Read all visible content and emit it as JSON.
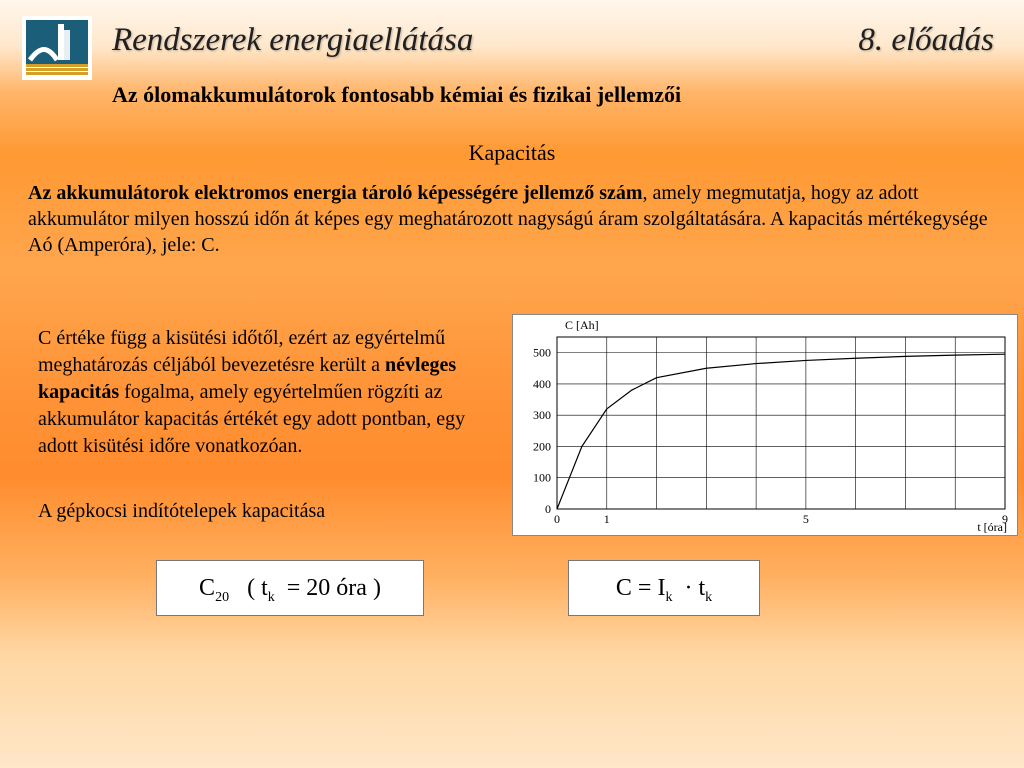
{
  "header": {
    "title": "Rendszerek energiaellátása",
    "lecture": "8. előadás"
  },
  "subtitle": "Az ólomakkumulátorok fontosabb kémiai és fizikai jellemzői",
  "section_title": "Kapacitás",
  "paragraph1": {
    "bold_part": "Az akkumulátorok elektromos energia tároló képességére jellemző szám",
    "rest": ", amely megmutatja, hogy az adott akkumulátor milyen hosszú időn át képes egy meghatározott nagyságú áram szolgáltatására. A kapacitás mértékegysége Aó (Amperóra), jele: C."
  },
  "paragraph2": {
    "pre": "C értéke függ a kisütési időtől, ezért az egyértelmű meghatározás céljából bevezetésre került a ",
    "bold": "névleges kapacitás",
    "post": " fogalma, amely egyértelműen rögzíti az akkumulátor kapacitás értékét egy adott pontban, egy adott kisütési időre vonatkozóan."
  },
  "paragraph3": "A gépkocsi indítótelepek kapacitása",
  "formula1": {
    "C": "C",
    "C_sub": "20",
    "t": "t",
    "t_sub": "k",
    "value": "20 óra"
  },
  "formula2": {
    "C": "C",
    "I": "I",
    "I_sub": "k",
    "t": "t",
    "t_sub": "k"
  },
  "chart": {
    "type": "line",
    "y_axis_label": "C [Ah]",
    "x_axis_label": "t [óra]",
    "y_ticks": [
      0,
      100,
      200,
      300,
      400,
      500
    ],
    "x_ticks": [
      0,
      1,
      5,
      9
    ],
    "ylim": [
      0,
      550
    ],
    "xlim": [
      0,
      9
    ],
    "curve": [
      {
        "x": 0,
        "y": 0
      },
      {
        "x": 0.5,
        "y": 200
      },
      {
        "x": 1,
        "y": 320
      },
      {
        "x": 1.5,
        "y": 380
      },
      {
        "x": 2,
        "y": 420
      },
      {
        "x": 3,
        "y": 450
      },
      {
        "x": 4,
        "y": 465
      },
      {
        "x": 5,
        "y": 475
      },
      {
        "x": 6,
        "y": 482
      },
      {
        "x": 7,
        "y": 488
      },
      {
        "x": 8,
        "y": 492
      },
      {
        "x": 9,
        "y": 495
      }
    ],
    "colors": {
      "background": "#ffffff",
      "grid": "#000000",
      "curve": "#000000",
      "text": "#000000"
    },
    "line_width": 1.2,
    "font_size_labels": 12
  },
  "logo": {
    "bg": "#ffffff",
    "accent": "#1a5e7a",
    "gold": "#d4a028"
  }
}
